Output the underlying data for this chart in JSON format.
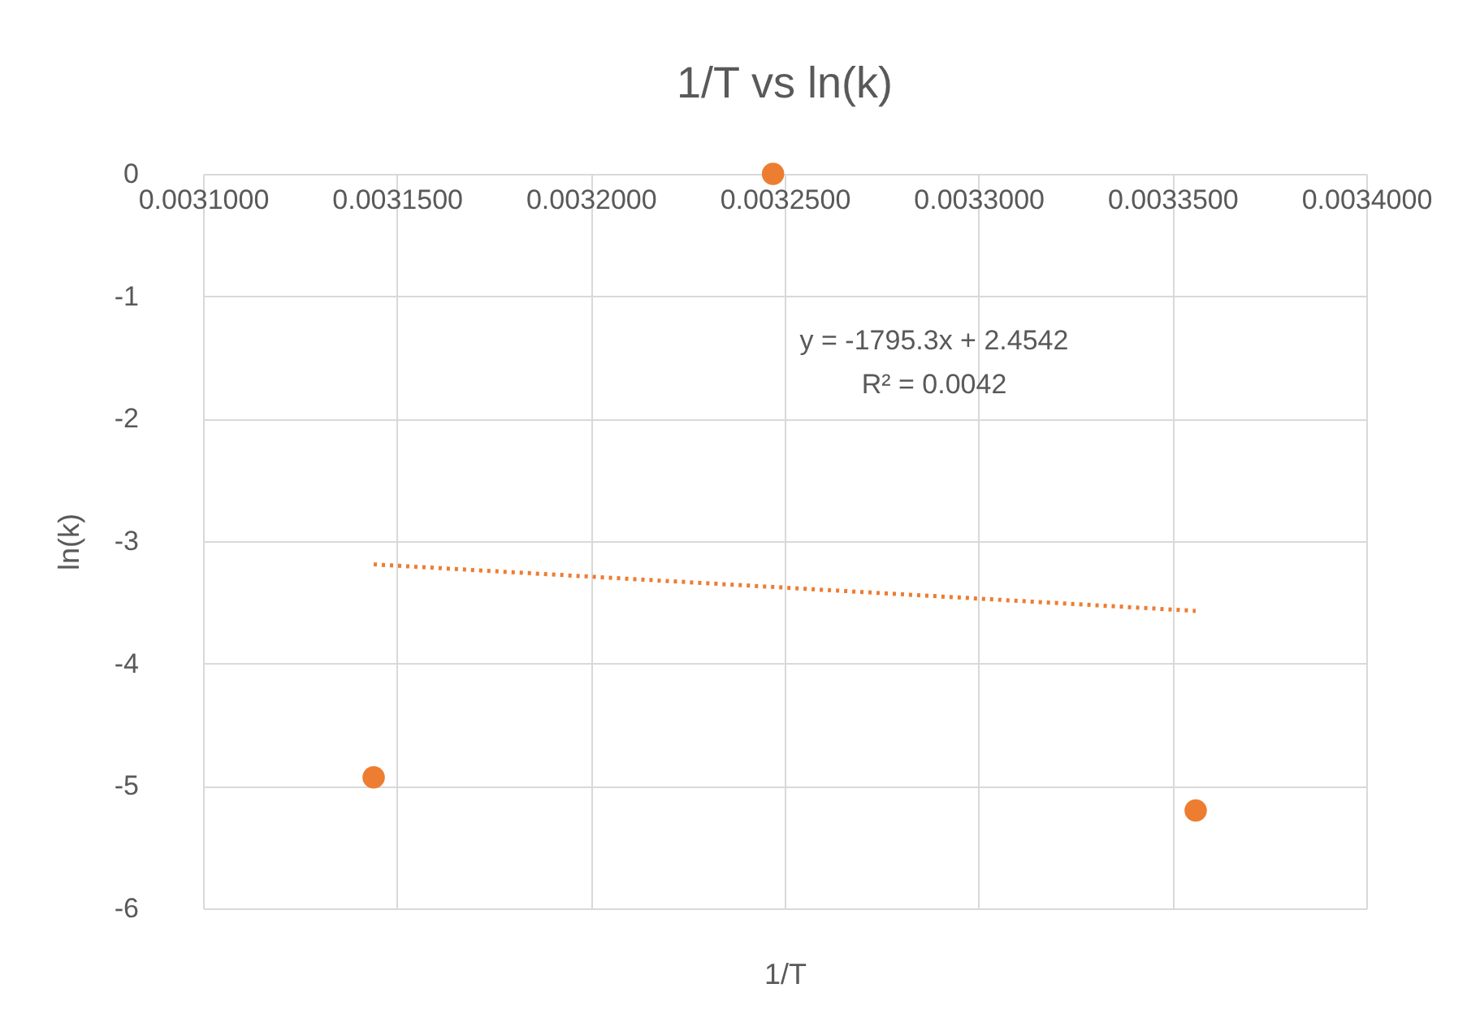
{
  "chart_data": {
    "type": "scatter",
    "title": "1/T vs ln(k)",
    "xlabel": "1/T",
    "ylabel": "ln(k)",
    "xlim": [
      0.0031,
      0.0034
    ],
    "ylim": [
      -6,
      0
    ],
    "xticks": [
      {
        "value": 0.0031,
        "label": "0.0031000"
      },
      {
        "value": 0.00315,
        "label": "0.0031500"
      },
      {
        "value": 0.0032,
        "label": "0.0032000"
      },
      {
        "value": 0.00325,
        "label": "0.0032500"
      },
      {
        "value": 0.0033,
        "label": "0.0033000"
      },
      {
        "value": 0.00335,
        "label": "0.0033500"
      },
      {
        "value": 0.0034,
        "label": "0.0034000"
      }
    ],
    "yticks": [
      -6,
      -5,
      -4,
      -3,
      -2,
      -1,
      0
    ],
    "grid": true,
    "series": [
      {
        "color": "#ed7d31",
        "marker": "circle",
        "x": [
          0.003144,
          0.003247,
          0.003356
        ],
        "values": [
          -4.93,
          0,
          -5.2
        ]
      },
      {
        "type": "line",
        "color": "#ed7d31",
        "marker": "none",
        "line_style": "dotted",
        "x": [
          0.003144,
          0.003356
        ],
        "values": [
          -3.19,
          -3.57
        ]
      }
    ],
    "annotations": [
      "y = -1795.3x + 2.4542",
      "R² = 0.0042"
    ]
  }
}
